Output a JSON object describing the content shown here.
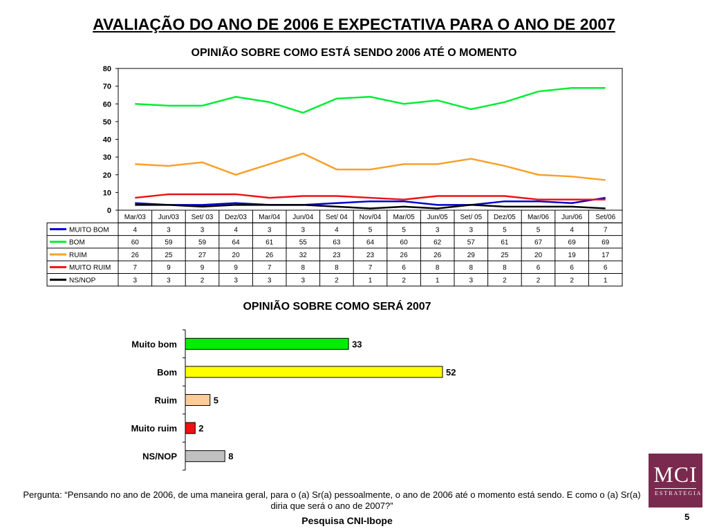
{
  "header": {
    "title": "AVALIAÇÃO DO ANO DE 2006 E EXPECTATIVA PARA O ANO DE 2007"
  },
  "chart_data": [
    {
      "type": "line",
      "title": "OPINIÃO SOBRE COMO ESTÁ SENDO 2006 ATÉ O MOMENTO",
      "xlabel": "",
      "ylabel": "",
      "ylim": [
        0,
        80
      ],
      "y_ticks": [
        "0",
        "10",
        "20",
        "30",
        "40",
        "50",
        "60",
        "70",
        "80"
      ],
      "categories": [
        "Mar/03",
        "Jun/03",
        "Set/ 03",
        "Dez/03",
        "Mar/04",
        "Jun/04",
        "Set/ 04",
        "Nov/04",
        "Mar/05",
        "Jun/05",
        "Set/ 05",
        "Dez/05",
        "Mar/06",
        "Jun/06",
        "Set/06"
      ],
      "grid": false,
      "legend": "table-left",
      "series": [
        {
          "name": "MUITO BOM",
          "color": "#0000cc",
          "values": [
            4,
            3,
            3,
            4,
            3,
            3,
            4,
            5,
            5,
            3,
            3,
            5,
            5,
            4,
            7
          ]
        },
        {
          "name": "BOM",
          "color": "#00ee33",
          "values": [
            60,
            59,
            59,
            64,
            61,
            55,
            63,
            64,
            60,
            62,
            57,
            61,
            67,
            69,
            69
          ]
        },
        {
          "name": "RUIM",
          "color": "#f7a12a",
          "values": [
            26,
            25,
            27,
            20,
            26,
            32,
            23,
            23,
            26,
            26,
            29,
            25,
            20,
            19,
            17
          ]
        },
        {
          "name": "MUITO RUIM",
          "color": "#ee1111",
          "values": [
            7,
            9,
            9,
            9,
            7,
            8,
            8,
            7,
            6,
            8,
            8,
            8,
            6,
            6,
            6
          ]
        },
        {
          "name": "NS/NOP",
          "color": "#000000",
          "values": [
            3,
            3,
            2,
            3,
            3,
            3,
            2,
            1,
            2,
            1,
            3,
            2,
            2,
            2,
            1
          ]
        }
      ]
    },
    {
      "type": "bar",
      "orientation": "horizontal",
      "title": "OPINIÃO SOBRE COMO SERÁ 2007",
      "xlabel": "",
      "ylabel": "",
      "categories": [
        "Muito bom",
        "Bom",
        "Ruim",
        "Muito ruim",
        "NS/NOP"
      ],
      "values": [
        33,
        52,
        5,
        2,
        8
      ],
      "colors": [
        "#00ee00",
        "#ffff00",
        "#ffcc99",
        "#ee1111",
        "#c0c0c0"
      ],
      "xlim": [
        0,
        100
      ]
    }
  ],
  "footer": {
    "question": "Pergunta: “Pensando no ano de 2006, de uma maneira geral, para o (a) Sr(a) pessoalmente, o ano de 2006 até o momento está sendo. E como o (a) Sr(a) diria que será o ano de 2007?”",
    "source": "Pesquisa CNI-Ibope",
    "page_number": "5"
  },
  "logo": {
    "name": "MCI",
    "tagline": "ESTRATEGIA"
  }
}
